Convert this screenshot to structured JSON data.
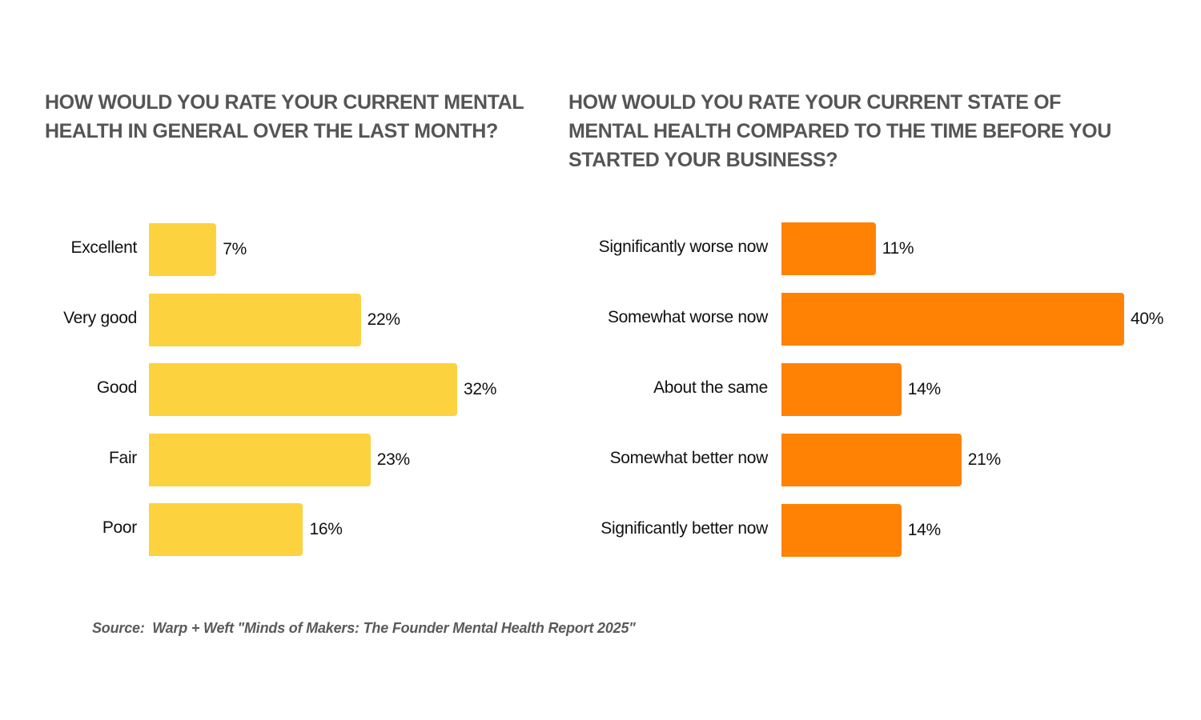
{
  "chart_data": [
    {
      "type": "bar",
      "orientation": "horizontal",
      "title": "HOW WOULD YOU RATE YOUR CURRENT MENTAL HEALTH IN GENERAL OVER THE LAST MONTH?",
      "categories": [
        "Excellent",
        "Very good",
        "Good",
        "Fair",
        "Poor"
      ],
      "values": [
        7,
        22,
        32,
        23,
        16
      ],
      "value_labels": [
        "7%",
        "22%",
        "32%",
        "23%",
        "16%"
      ],
      "xlabel": "",
      "ylabel": "",
      "unit": "%",
      "grid": false,
      "legend": "none",
      "color": "#FDD23F"
    },
    {
      "type": "bar",
      "orientation": "horizontal",
      "title": "HOW WOULD YOU RATE YOUR CURRENT STATE OF MENTAL HEALTH COMPARED TO THE TIME BEFORE YOU STARTED YOUR BUSINESS?",
      "categories": [
        "Significantly worse now",
        "Somewhat worse now",
        "About the same",
        "Somewhat better now",
        "Significantly better now"
      ],
      "values": [
        11,
        40,
        14,
        21,
        14
      ],
      "value_labels": [
        "11%",
        "40%",
        "14%",
        "21%",
        "14%"
      ],
      "xlabel": "",
      "ylabel": "",
      "unit": "%",
      "grid": false,
      "legend": "none",
      "color": "#FF8205"
    }
  ],
  "source": "Source:  Warp + Weft \"Minds of Makers: The Founder Mental Health Report 2025\""
}
